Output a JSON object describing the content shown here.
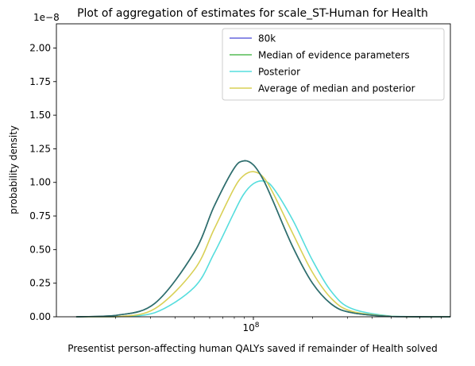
{
  "chart_data": {
    "type": "line",
    "title": "Plot of aggregation of estimates for scale_ST-Human for Health",
    "xlabel": "Presentist person-affecting human QALYs saved if remainder of Health solved",
    "ylabel": "probability density",
    "x_scale": "log",
    "x_ticks": [
      {
        "value": 100000000,
        "label": "10^8"
      }
    ],
    "xlim": [
      10000000,
      1000000000
    ],
    "y_multiplier_label": "1e−8",
    "ylim": [
      0,
      2.18
    ],
    "y_ticks": [
      0.0,
      0.25,
      0.5,
      0.75,
      1.0,
      1.25,
      1.5,
      1.75,
      2.0
    ],
    "y_tick_labels": [
      "0.00",
      "0.25",
      "0.50",
      "0.75",
      "1.00",
      "1.25",
      "1.50",
      "1.75",
      "2.00"
    ],
    "grid": false,
    "legend_position": "upper-right",
    "series": [
      {
        "name": "80k",
        "color": "#6666dd",
        "x": [
          12600000,
          20000000,
          31600000,
          50100000,
          63100000,
          79400000,
          89100000,
          100000000,
          112200000,
          125900000,
          158500000,
          199500000,
          251200000,
          316200000,
          501200000,
          794300000,
          1000000000
        ],
        "y": [
          0.0,
          0.01,
          0.1,
          0.48,
          0.82,
          1.1,
          1.16,
          1.13,
          1.02,
          0.86,
          0.52,
          0.25,
          0.09,
          0.03,
          0.002,
          0.0,
          0.0
        ]
      },
      {
        "name": "Median of evidence parameters",
        "color": "#55bb55",
        "x": [
          12600000,
          20000000,
          31600000,
          50100000,
          63100000,
          79400000,
          89100000,
          100000000,
          112200000,
          125900000,
          158500000,
          199500000,
          251200000,
          316200000,
          501200000,
          794300000,
          1000000000
        ],
        "y": [
          0.0,
          0.01,
          0.1,
          0.48,
          0.82,
          1.1,
          1.16,
          1.13,
          1.02,
          0.86,
          0.52,
          0.25,
          0.09,
          0.03,
          0.002,
          0.0,
          0.0
        ]
      },
      {
        "name": "Posterior",
        "color": "#55dddd",
        "x": [
          12600000,
          20000000,
          31600000,
          50100000,
          63100000,
          79400000,
          89100000,
          100000000,
          112200000,
          125900000,
          158500000,
          199500000,
          251200000,
          316200000,
          501200000,
          794300000,
          1000000000
        ],
        "y": [
          0.0,
          0.0,
          0.03,
          0.22,
          0.47,
          0.77,
          0.91,
          0.99,
          1.01,
          0.96,
          0.72,
          0.42,
          0.18,
          0.06,
          0.004,
          0.0,
          0.0
        ]
      },
      {
        "name": "Average of median and posterior",
        "color": "#d9d055",
        "x": [
          12600000,
          20000000,
          31600000,
          50100000,
          63100000,
          79400000,
          89100000,
          100000000,
          112200000,
          125900000,
          158500000,
          199500000,
          251200000,
          316200000,
          501200000,
          794300000,
          1000000000
        ],
        "y": [
          0.0,
          0.0,
          0.06,
          0.35,
          0.65,
          0.95,
          1.05,
          1.08,
          1.04,
          0.92,
          0.62,
          0.33,
          0.13,
          0.04,
          0.003,
          0.0,
          0.0
        ]
      }
    ],
    "overlap_trace_color": "#2f6e6e"
  }
}
